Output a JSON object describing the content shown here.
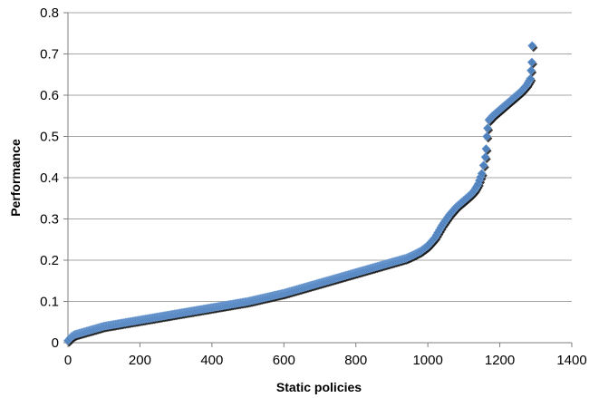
{
  "chart_data": {
    "type": "scatter",
    "title": "",
    "xlabel": "Static policies",
    "ylabel": "Performance",
    "xlim": [
      0,
      1400
    ],
    "ylim": [
      0,
      0.8
    ],
    "x_ticks": [
      0,
      200,
      400,
      600,
      800,
      1000,
      1200,
      1400
    ],
    "y_ticks": [
      0,
      0.1,
      0.2,
      0.3,
      0.4,
      0.5,
      0.6,
      0.7,
      0.8
    ],
    "x_tick_labels": [
      "0",
      "200",
      "400",
      "600",
      "800",
      "1000",
      "1200",
      "1400"
    ],
    "y_tick_labels": [
      "0",
      "0.1",
      "0.2",
      "0.3",
      "0.4",
      "0.5",
      "0.6",
      "0.7",
      "0.8"
    ],
    "grid": "horizontal",
    "legend": "none",
    "marker": "diamond",
    "marker_color": "#4f81bd",
    "grid_color": "#a6a6a6",
    "series": [
      {
        "points": [
          [
            0,
            0.005
          ],
          [
            5,
            0.01
          ],
          [
            10,
            0.015
          ],
          [
            20,
            0.02
          ],
          [
            40,
            0.025
          ],
          [
            60,
            0.03
          ],
          [
            80,
            0.035
          ],
          [
            100,
            0.04
          ],
          [
            120,
            0.043
          ],
          [
            140,
            0.046
          ],
          [
            160,
            0.049
          ],
          [
            180,
            0.052
          ],
          [
            200,
            0.055
          ],
          [
            220,
            0.058
          ],
          [
            240,
            0.061
          ],
          [
            260,
            0.064
          ],
          [
            280,
            0.067
          ],
          [
            300,
            0.07
          ],
          [
            320,
            0.073
          ],
          [
            340,
            0.076
          ],
          [
            360,
            0.079
          ],
          [
            380,
            0.082
          ],
          [
            400,
            0.085
          ],
          [
            420,
            0.088
          ],
          [
            440,
            0.091
          ],
          [
            460,
            0.094
          ],
          [
            480,
            0.097
          ],
          [
            500,
            0.1
          ],
          [
            520,
            0.104
          ],
          [
            540,
            0.108
          ],
          [
            560,
            0.112
          ],
          [
            580,
            0.116
          ],
          [
            600,
            0.12
          ],
          [
            620,
            0.125
          ],
          [
            640,
            0.13
          ],
          [
            660,
            0.135
          ],
          [
            680,
            0.14
          ],
          [
            700,
            0.145
          ],
          [
            720,
            0.15
          ],
          [
            740,
            0.155
          ],
          [
            760,
            0.16
          ],
          [
            780,
            0.165
          ],
          [
            800,
            0.17
          ],
          [
            820,
            0.175
          ],
          [
            840,
            0.18
          ],
          [
            860,
            0.185
          ],
          [
            880,
            0.19
          ],
          [
            900,
            0.195
          ],
          [
            920,
            0.2
          ],
          [
            940,
            0.205
          ],
          [
            960,
            0.213
          ],
          [
            980,
            0.222
          ],
          [
            1000,
            0.235
          ],
          [
            1020,
            0.255
          ],
          [
            1040,
            0.285
          ],
          [
            1060,
            0.31
          ],
          [
            1080,
            0.33
          ],
          [
            1100,
            0.345
          ],
          [
            1120,
            0.36
          ],
          [
            1130,
            0.37
          ],
          [
            1140,
            0.385
          ],
          [
            1150,
            0.41
          ],
          [
            1155,
            0.43
          ],
          [
            1160,
            0.45
          ],
          [
            1162,
            0.47
          ],
          [
            1164,
            0.5
          ],
          [
            1166,
            0.52
          ],
          [
            1170,
            0.54
          ],
          [
            1180,
            0.55
          ],
          [
            1200,
            0.565
          ],
          [
            1220,
            0.58
          ],
          [
            1240,
            0.595
          ],
          [
            1260,
            0.61
          ],
          [
            1275,
            0.625
          ],
          [
            1285,
            0.64
          ],
          [
            1287,
            0.66
          ],
          [
            1289,
            0.68
          ],
          [
            1290,
            0.72
          ]
        ]
      }
    ]
  }
}
